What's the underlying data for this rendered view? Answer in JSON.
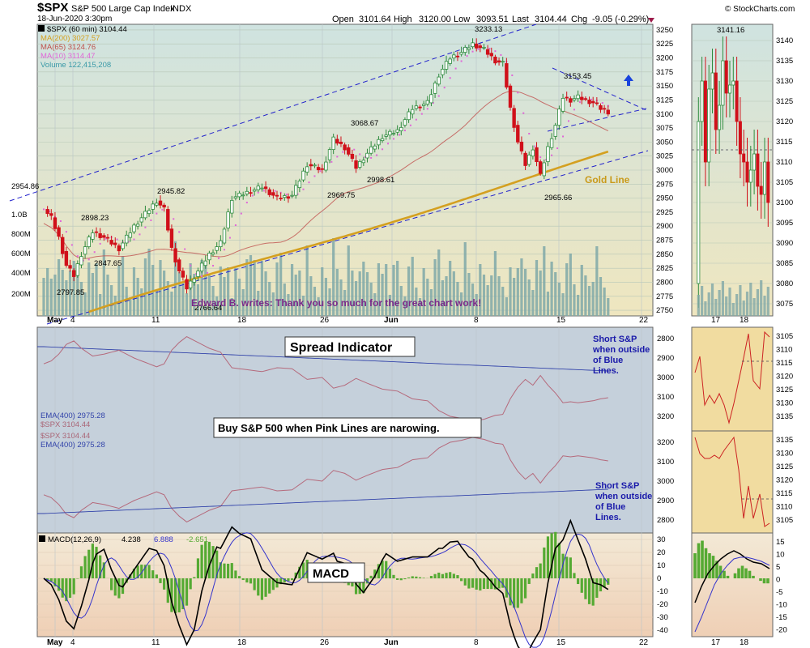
{
  "header": {
    "symbol": "$SPX",
    "name": "S&P 500 Large Cap Index",
    "exchange": "INDX",
    "datetime": "18-Jun-2020 3:30pm",
    "brand": "© StockCharts.com",
    "open_label": "Open",
    "open": "3101.64",
    "high_label": "High",
    "high": "3120.00",
    "low_label": "Low",
    "low": "3093.51",
    "last_label": "Last",
    "last": "3104.44",
    "chg_label": "Chg",
    "chg": "-9.05 (-0.29%)"
  },
  "colors": {
    "price_bg": "#dbe7cf",
    "spread_bg": "#c3cfd9",
    "macd_bg": "#efd9c1",
    "up_candle": "#2e8b3e",
    "down_candle": "#d0101a",
    "ma200": "#d4a020",
    "ma65": "#c0504d",
    "ma10": "#e066d8",
    "volume": "#7fa8a8",
    "trendline": "#2222cc",
    "macd_line": "#000000",
    "signal_line": "#3333cc",
    "hist": "#55aa33"
  },
  "legend": [
    {
      "text": "$SPX (60 min) 3104.44",
      "color": "#000000"
    },
    {
      "text": "MA(200) 3027.57",
      "color": "#d4a020"
    },
    {
      "text": "MA(65) 3124.76",
      "color": "#c0504d"
    },
    {
      "text": "MA(10) 3114.47",
      "color": "#e066d8"
    },
    {
      "text": "Volume 122,415,208",
      "color": "#3a9aa8"
    }
  ],
  "annotations": {
    "gold_line": "Gold Line",
    "edward": "Edward B. writes: Thank you so much for the great chart work!",
    "spread_title": "Spread Indicator",
    "buy_note": "Buy S&P 500 when Pink Lines are narowing.",
    "short_note_top": [
      "Short S&P",
      "when outside",
      "of Blue",
      "Lines."
    ],
    "short_note_bottom": [
      "Short S&P",
      "when outside",
      "of Blue",
      "Lines."
    ],
    "macd_title": "MACD"
  },
  "spread_legend": [
    {
      "text": "EMA(400) 2975.28",
      "color": "#3344aa"
    },
    {
      "text": "$SPX 3104.44",
      "color": "#aa6677"
    },
    {
      "text": "$SPX 3104.44",
      "color": "#aa6677"
    },
    {
      "text": "EMA(400) 2975.28",
      "color": "#3344aa"
    }
  ],
  "macd_legend": {
    "label": "MACD(12,26,9)",
    "macd": "4.238",
    "signal": "6.888",
    "hist": "-2.651"
  },
  "chart_data": {
    "type": "candlestick",
    "price_axis": {
      "ticks": [
        2750,
        2775,
        2800,
        2825,
        2850,
        2875,
        2900,
        2925,
        2950,
        2975,
        3000,
        3025,
        3050,
        3075,
        3100,
        3125,
        3150,
        3175,
        3200,
        3225,
        3250
      ],
      "range": [
        2740,
        3260
      ]
    },
    "volume_axis": {
      "ticks": [
        "200M",
        "400M",
        "600M",
        "800M",
        "1.0B"
      ]
    },
    "x_labels": [
      "May",
      "4",
      "11",
      "18",
      "26",
      "Jun",
      "8",
      "15",
      "22"
    ],
    "price_labels": [
      "2954.86",
      "2898.23",
      "2945.82",
      "2847.65",
      "2797.85",
      "2766.64",
      "2969.75",
      "3068.67",
      "2998.61",
      "3233.13",
      "3153.45",
      "2965.66"
    ],
    "close_points": [
      {
        "t": 0,
        "v": 2930
      },
      {
        "t": 2,
        "v": 2915
      },
      {
        "t": 4,
        "v": 2880
      },
      {
        "t": 6,
        "v": 2830
      },
      {
        "t": 8,
        "v": 2812
      },
      {
        "t": 10,
        "v": 2850
      },
      {
        "t": 13,
        "v": 2890
      },
      {
        "t": 16,
        "v": 2880
      },
      {
        "t": 20,
        "v": 2860
      },
      {
        "t": 24,
        "v": 2900
      },
      {
        "t": 28,
        "v": 2930
      },
      {
        "t": 30,
        "v": 2945
      },
      {
        "t": 32,
        "v": 2930
      },
      {
        "t": 34,
        "v": 2860
      },
      {
        "t": 36,
        "v": 2820
      },
      {
        "t": 38,
        "v": 2790
      },
      {
        "t": 40,
        "v": 2810
      },
      {
        "t": 42,
        "v": 2830
      },
      {
        "t": 44,
        "v": 2850
      },
      {
        "t": 47,
        "v": 2870
      },
      {
        "t": 50,
        "v": 2950
      },
      {
        "t": 54,
        "v": 2960
      },
      {
        "t": 58,
        "v": 2970
      },
      {
        "t": 62,
        "v": 2950
      },
      {
        "t": 66,
        "v": 2955
      },
      {
        "t": 70,
        "v": 3010
      },
      {
        "t": 74,
        "v": 3000
      },
      {
        "t": 77,
        "v": 3055
      },
      {
        "t": 80,
        "v": 3040
      },
      {
        "t": 83,
        "v": 3005
      },
      {
        "t": 86,
        "v": 3030
      },
      {
        "t": 90,
        "v": 3060
      },
      {
        "t": 94,
        "v": 3070
      },
      {
        "t": 98,
        "v": 3110
      },
      {
        "t": 102,
        "v": 3120
      },
      {
        "t": 105,
        "v": 3170
      },
      {
        "t": 108,
        "v": 3200
      },
      {
        "t": 111,
        "v": 3210
      },
      {
        "t": 114,
        "v": 3225
      },
      {
        "t": 117,
        "v": 3215
      },
      {
        "t": 120,
        "v": 3195
      },
      {
        "t": 122,
        "v": 3190
      },
      {
        "t": 124,
        "v": 3110
      },
      {
        "t": 126,
        "v": 3050
      },
      {
        "t": 128,
        "v": 3010
      },
      {
        "t": 130,
        "v": 3040
      },
      {
        "t": 132,
        "v": 2990
      },
      {
        "t": 134,
        "v": 3040
      },
      {
        "t": 136,
        "v": 3080
      },
      {
        "t": 138,
        "v": 3130
      },
      {
        "t": 140,
        "v": 3125
      },
      {
        "t": 142,
        "v": 3130
      },
      {
        "t": 144,
        "v": 3125
      },
      {
        "t": 146,
        "v": 3120
      },
      {
        "t": 148,
        "v": 3110
      },
      {
        "t": 150,
        "v": 3104
      }
    ],
    "macd_axis": {
      "ticks": [
        30,
        20,
        10,
        0,
        -10,
        -20,
        -30,
        -40
      ],
      "range": [
        -45,
        35
      ]
    },
    "spread_axis_top": {
      "ticks": [
        2800,
        2900,
        3000,
        3100,
        3200
      ]
    },
    "spread_axis_bottom": {
      "ticks": [
        3200,
        3100,
        3000,
        2900,
        2800
      ]
    },
    "daily_axis": {
      "ticks": [
        3140,
        3135,
        3130,
        3125,
        3120,
        3115,
        3110,
        3105,
        3100,
        3095,
        3090,
        3085,
        3080,
        3075
      ],
      "high_label": "3141.16",
      "x_labels": [
        "17",
        "18"
      ]
    },
    "daily_spread_top_ticks": [
      3105,
      3110,
      3115,
      3120,
      3125,
      3130,
      3135
    ],
    "daily_spread_bottom_ticks": [
      3135,
      3130,
      3125,
      3120,
      3115,
      3110,
      3105
    ],
    "daily_macd_ticks": [
      15,
      10,
      5,
      0,
      -5,
      -10,
      -15,
      -20
    ]
  }
}
